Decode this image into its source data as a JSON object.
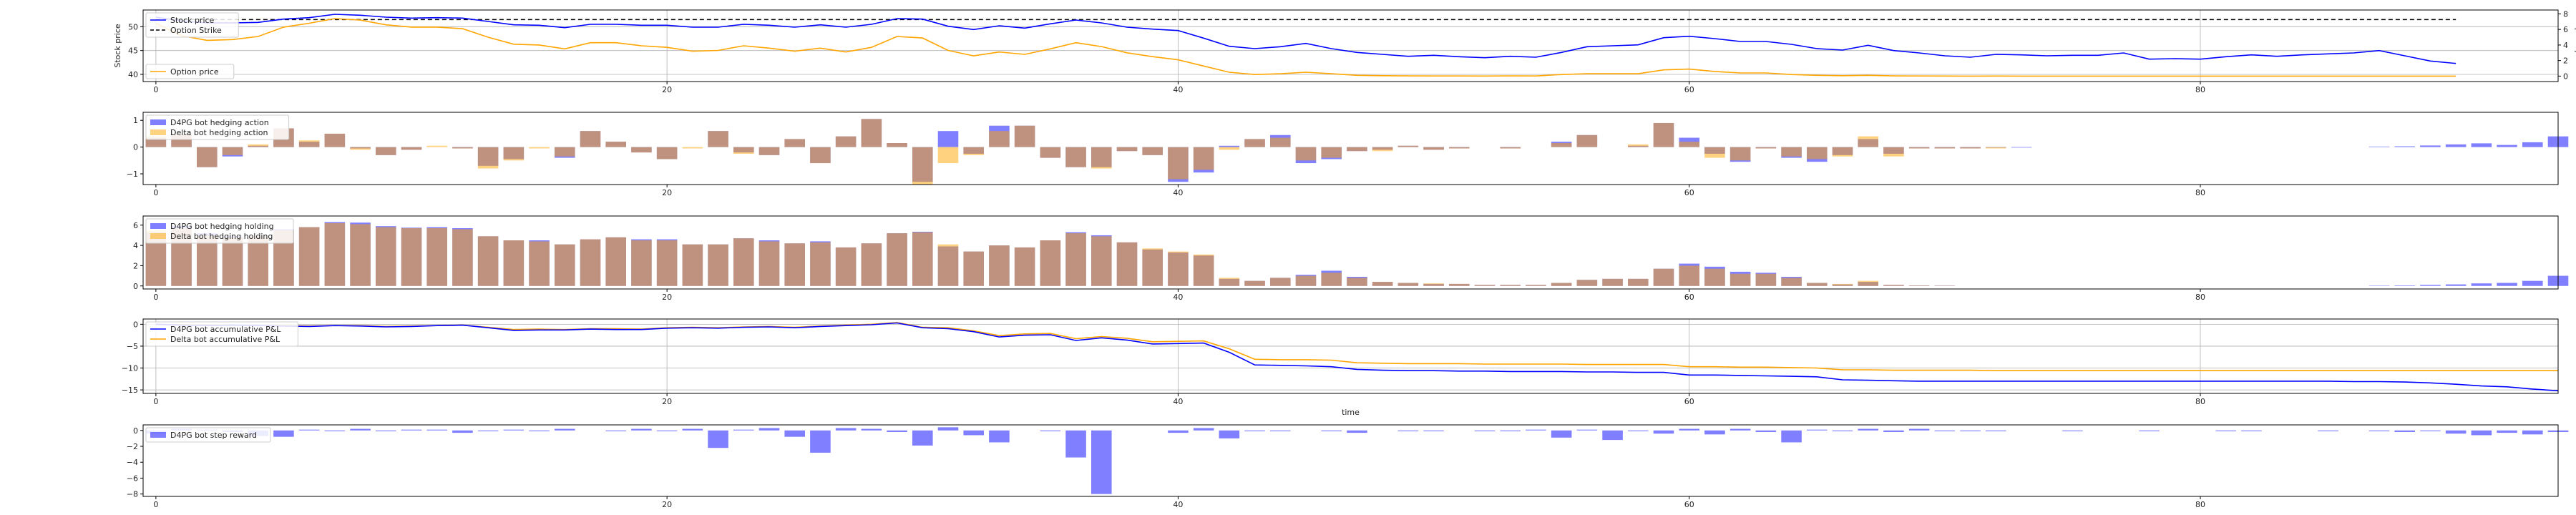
{
  "colors": {
    "d4pg": "#0000ff",
    "delta": "#ffa500",
    "overlap": "#a0522d",
    "strike": "#000000",
    "grid": "#b0b0b0",
    "axis": "#000000"
  },
  "chart_data": [
    {
      "id": "price",
      "type": "line",
      "ylabel": "Stock price",
      "y2label": "Option price",
      "ylim": [
        38.5,
        53.5
      ],
      "yticks": [
        40,
        45,
        50
      ],
      "y2lim": [
        -0.7,
        8.5
      ],
      "y2ticks": [
        0,
        2,
        4,
        6,
        8
      ],
      "xlim": [
        -0.5,
        94
      ],
      "xticks": [
        0,
        20,
        40,
        60,
        80
      ],
      "grid": true,
      "legend": [
        {
          "label": "Stock price",
          "style": "line",
          "color": "#0000ff"
        },
        {
          "label": "Option Strike",
          "style": "dashed",
          "color": "#000000"
        }
      ],
      "legend2": [
        {
          "label": "Option price",
          "style": "line",
          "color": "#ffa500"
        }
      ],
      "strike": 51.5,
      "stock_price": [
        52.0,
        51.2,
        50.8,
        50.8,
        50.9,
        51.6,
        51.9,
        52.6,
        52.4,
        52.0,
        51.8,
        51.9,
        51.8,
        51.1,
        50.4,
        50.3,
        49.8,
        50.5,
        50.5,
        50.3,
        50.3,
        49.9,
        49.9,
        50.5,
        50.3,
        49.9,
        50.4,
        49.9,
        50.5,
        51.7,
        51.6,
        50.1,
        49.4,
        50.2,
        49.7,
        50.6,
        51.4,
        50.8,
        49.9,
        49.5,
        49.2,
        47.6,
        45.9,
        45.4,
        45.8,
        46.5,
        45.4,
        44.6,
        44.2,
        43.8,
        44.0,
        43.7,
        43.5,
        43.8,
        43.6,
        44.6,
        45.8,
        46.0,
        46.2,
        47.7,
        48.0,
        47.5,
        46.9,
        46.9,
        46.3,
        45.4,
        45.1,
        46.1,
        45.0,
        44.5,
        43.9,
        43.6,
        44.2,
        44.1,
        43.9,
        44.0,
        44.0,
        44.5,
        43.2,
        43.3,
        43.2,
        43.7,
        44.1,
        43.8,
        44.1,
        44.3,
        44.5,
        45.0,
        43.9,
        42.8,
        42.3
      ],
      "option_price": [
        6.8,
        5.2,
        4.6,
        4.7,
        5.1,
        6.3,
        6.8,
        7.4,
        7.2,
        6.6,
        6.3,
        6.3,
        6.1,
        5.0,
        4.1,
        4.0,
        3.5,
        4.3,
        4.3,
        3.9,
        3.7,
        3.2,
        3.3,
        3.9,
        3.6,
        3.2,
        3.6,
        3.1,
        3.7,
        5.1,
        4.9,
        3.3,
        2.6,
        3.1,
        2.8,
        3.5,
        4.3,
        3.8,
        3.0,
        2.5,
        2.1,
        1.3,
        0.5,
        0.2,
        0.3,
        0.5,
        0.3,
        0.1,
        0.05,
        0.03,
        0.02,
        0.02,
        0.01,
        0.03,
        0.02,
        0.2,
        0.3,
        0.3,
        0.3,
        0.8,
        0.9,
        0.6,
        0.4,
        0.4,
        0.2,
        0.1,
        0.05,
        0.1,
        0.03,
        0.02,
        0.01,
        0.0,
        0.01,
        0.0,
        0.0,
        0.0,
        0.0,
        0.0,
        0.0,
        0.0,
        0.0,
        0.0,
        0.0,
        0.0,
        0.0,
        0.0,
        0.0,
        0.0,
        0.0,
        0.0,
        0.0
      ]
    },
    {
      "id": "action",
      "type": "bar",
      "ylim": [
        -1.4,
        1.3
      ],
      "yticks": [
        -1,
        0,
        1
      ],
      "xlim": [
        -0.5,
        94
      ],
      "xticks": [
        0,
        20,
        40,
        60,
        80
      ],
      "grid": false,
      "legend": [
        {
          "label": "D4PG bot hedging action",
          "style": "bar",
          "color": "#0000ff"
        },
        {
          "label": "Delta bot hedging action",
          "style": "bar",
          "color": "#ffa500"
        }
      ],
      "d4pg": [
        0.35,
        0.5,
        -0.75,
        -0.35,
        0.05,
        0.7,
        0.2,
        0.5,
        -0.05,
        -0.3,
        -0.1,
        0.0,
        -0.05,
        -0.7,
        -0.45,
        0.0,
        -0.4,
        0.6,
        0.2,
        -0.2,
        -0.45,
        0.0,
        0.6,
        -0.2,
        -0.3,
        0.3,
        -0.6,
        0.4,
        1.05,
        0.15,
        -1.3,
        0.6,
        -0.25,
        0.8,
        0.8,
        -0.4,
        -0.75,
        -0.75,
        -0.15,
        -0.3,
        -1.3,
        -0.95,
        0.05,
        0.3,
        0.45,
        -0.6,
        -0.45,
        -0.15,
        -0.1,
        0.05,
        -0.1,
        -0.05,
        0.0,
        -0.05,
        0.0,
        0.2,
        0.45,
        0.0,
        0.05,
        0.9,
        0.35,
        -0.25,
        -0.55,
        -0.05,
        -0.4,
        -0.55,
        -0.3,
        0.3,
        -0.25,
        -0.05,
        -0.05,
        -0.05,
        -0.02,
        -0.02,
        0.0,
        0.0,
        0.0,
        0.0,
        0.0,
        0.0,
        0.0,
        0.0,
        0.0,
        0.0,
        0.0,
        0.0,
        0.0,
        0.02,
        0.03,
        0.06,
        0.1,
        0.14,
        0.08,
        0.18,
        0.4
      ],
      "delta": [
        0.4,
        0.5,
        -0.75,
        -0.3,
        0.1,
        0.7,
        0.25,
        0.5,
        -0.1,
        -0.3,
        -0.1,
        0.05,
        -0.05,
        -0.8,
        -0.5,
        -0.05,
        -0.35,
        0.6,
        0.2,
        -0.2,
        -0.45,
        -0.05,
        0.6,
        -0.25,
        -0.3,
        0.3,
        -0.6,
        0.4,
        1.05,
        0.15,
        -1.4,
        -0.6,
        -0.3,
        0.6,
        0.8,
        -0.4,
        -0.75,
        -0.8,
        -0.15,
        -0.3,
        -1.2,
        -0.85,
        -0.1,
        0.3,
        0.35,
        -0.5,
        -0.4,
        -0.15,
        -0.15,
        0.05,
        -0.1,
        -0.05,
        0.0,
        -0.05,
        0.0,
        0.15,
        0.45,
        0.0,
        0.1,
        0.9,
        0.2,
        -0.4,
        -0.5,
        -0.05,
        -0.35,
        -0.45,
        -0.35,
        0.4,
        -0.35,
        -0.05,
        -0.05,
        -0.05,
        -0.05,
        0.0,
        0.0,
        0.0,
        0.0,
        0.0,
        0.0,
        0.0,
        0.0,
        0.0,
        0.0,
        0.0,
        0.0,
        0.0,
        0.0,
        0.0,
        0.0,
        0.0,
        0.0,
        0.0,
        0.0,
        0.0,
        0.0
      ]
    },
    {
      "id": "holding",
      "type": "bar",
      "ylim": [
        -0.3,
        6.9
      ],
      "yticks": [
        0,
        2,
        4,
        6
      ],
      "xlim": [
        -0.5,
        94
      ],
      "xticks": [
        0,
        20,
        40,
        60,
        80
      ],
      "grid": false,
      "legend": [
        {
          "label": "D4PG bot hedging holding",
          "style": "bar",
          "color": "#0000ff"
        },
        {
          "label": "Delta bot hedging holding",
          "style": "bar",
          "color": "#ffa500"
        }
      ],
      "d4pg": [
        5.3,
        5.9,
        5.2,
        4.9,
        4.9,
        5.6,
        5.8,
        6.3,
        6.25,
        5.9,
        5.75,
        5.8,
        5.7,
        4.9,
        4.5,
        4.5,
        4.1,
        4.6,
        4.8,
        4.6,
        4.6,
        4.1,
        4.1,
        4.7,
        4.5,
        4.2,
        4.4,
        3.8,
        4.2,
        5.2,
        5.35,
        3.9,
        3.4,
        4.0,
        3.8,
        4.5,
        5.3,
        5.0,
        4.3,
        3.6,
        3.3,
        3.0,
        0.7,
        0.5,
        0.8,
        1.1,
        1.5,
        0.9,
        0.4,
        0.3,
        0.2,
        0.2,
        0.1,
        0.1,
        0.1,
        0.3,
        0.6,
        0.7,
        0.7,
        1.7,
        2.2,
        1.9,
        1.4,
        1.3,
        0.9,
        0.3,
        0.15,
        0.4,
        0.1,
        0.05,
        0.02,
        0.0,
        0.0,
        0.0,
        0.0,
        0.0,
        0.0,
        0.0,
        0.0,
        0.0,
        0.0,
        0.0,
        0.0,
        0.0,
        0.0,
        0.0,
        0.0,
        0.02,
        0.05,
        0.1,
        0.15,
        0.25,
        0.3,
        0.5,
        1.0
      ],
      "delta": [
        5.5,
        5.7,
        5.0,
        4.8,
        4.9,
        5.5,
        5.8,
        6.2,
        6.1,
        5.8,
        5.7,
        5.7,
        5.6,
        4.9,
        4.5,
        4.4,
        4.1,
        4.6,
        4.8,
        4.5,
        4.5,
        4.1,
        4.1,
        4.7,
        4.4,
        4.2,
        4.3,
        3.8,
        4.2,
        5.2,
        5.3,
        4.1,
        3.4,
        4.0,
        3.8,
        4.5,
        5.2,
        4.9,
        4.3,
        3.7,
        3.4,
        3.1,
        0.8,
        0.5,
        0.8,
        1.0,
        1.3,
        0.8,
        0.4,
        0.3,
        0.25,
        0.2,
        0.1,
        0.1,
        0.1,
        0.3,
        0.6,
        0.7,
        0.7,
        1.7,
        2.0,
        1.7,
        1.2,
        1.2,
        0.8,
        0.3,
        0.2,
        0.5,
        0.1,
        0.05,
        0.03,
        0.0,
        0.0,
        0.0,
        0.0,
        0.0,
        0.0,
        0.0,
        0.0,
        0.0,
        0.0,
        0.0,
        0.0,
        0.0,
        0.0,
        0.0,
        0.0,
        0.0,
        0.0,
        0.0,
        0.0,
        0.0,
        0.0,
        0.0,
        0.0
      ]
    },
    {
      "id": "pnl",
      "type": "line",
      "xlabel": "time",
      "ylim": [
        -15.8,
        1.2
      ],
      "yticks": [
        -15,
        -10,
        -5,
        0
      ],
      "xlim": [
        -0.5,
        94
      ],
      "xticks": [
        0,
        20,
        40,
        60,
        80
      ],
      "grid": true,
      "legend": [
        {
          "label": "D4PG bot accumulative P&L",
          "style": "line",
          "color": "#0000ff"
        },
        {
          "label": "Delta bot accumulative P&L",
          "style": "line",
          "color": "#ffa500"
        }
      ],
      "d4pg": [
        0,
        -0.2,
        -0.3,
        -0.2,
        -0.3,
        -0.4,
        -0.5,
        -0.3,
        -0.4,
        -0.6,
        -0.5,
        -0.3,
        -0.2,
        -0.8,
        -1.4,
        -1.3,
        -1.3,
        -1.1,
        -1.2,
        -1.2,
        -0.9,
        -0.8,
        -0.9,
        -0.7,
        -0.6,
        -0.8,
        -0.5,
        -0.3,
        -0.1,
        0.3,
        -0.8,
        -1.0,
        -1.7,
        -2.9,
        -2.5,
        -2.4,
        -3.7,
        -3.1,
        -3.6,
        -4.5,
        -4.4,
        -4.3,
        -6.4,
        -9.3,
        -9.4,
        -9.5,
        -9.7,
        -10.3,
        -10.5,
        -10.6,
        -10.6,
        -10.7,
        -10.7,
        -10.8,
        -10.8,
        -10.8,
        -10.9,
        -10.9,
        -11.0,
        -11.0,
        -11.6,
        -11.6,
        -11.7,
        -11.8,
        -11.9,
        -12.0,
        -12.7,
        -12.8,
        -12.9,
        -13.0,
        -13.0,
        -13.0,
        -13.0,
        -13.0,
        -13.0,
        -13.0,
        -13.0,
        -13.0,
        -13.0,
        -13.0,
        -13.0,
        -13.0,
        -13.0,
        -13.0,
        -13.0,
        -13.0,
        -13.1,
        -13.1,
        -13.2,
        -13.4,
        -13.7,
        -14.1,
        -14.3,
        -14.8,
        -15.2
      ],
      "delta": [
        0,
        -0.1,
        -0.2,
        -0.2,
        -0.3,
        -0.3,
        -0.4,
        -0.3,
        -0.3,
        -0.5,
        -0.4,
        -0.3,
        -0.2,
        -0.7,
        -1.2,
        -1.1,
        -1.2,
        -1.0,
        -1.0,
        -1.1,
        -0.8,
        -0.7,
        -0.8,
        -0.6,
        -0.5,
        -0.7,
        -0.4,
        -0.2,
        0.0,
        0.4,
        -0.7,
        -0.8,
        -1.5,
        -2.6,
        -2.2,
        -2.1,
        -3.3,
        -2.8,
        -3.2,
        -4.0,
        -3.9,
        -3.8,
        -5.6,
        -8.0,
        -8.1,
        -8.1,
        -8.2,
        -8.8,
        -8.9,
        -9.0,
        -9.0,
        -9.0,
        -9.1,
        -9.1,
        -9.1,
        -9.1,
        -9.2,
        -9.2,
        -9.2,
        -9.2,
        -9.7,
        -9.7,
        -9.8,
        -9.8,
        -9.9,
        -10.0,
        -10.4,
        -10.4,
        -10.5,
        -10.5,
        -10.5,
        -10.5,
        -10.6,
        -10.6,
        -10.6,
        -10.6,
        -10.6,
        -10.6,
        -10.6,
        -10.6,
        -10.6,
        -10.6,
        -10.6,
        -10.6,
        -10.6,
        -10.6,
        -10.6,
        -10.6,
        -10.6,
        -10.6,
        -10.6,
        -10.6,
        -10.6,
        -10.6,
        -10.6
      ]
    },
    {
      "id": "reward",
      "type": "bar",
      "ylim": [
        -8.3,
        0.7
      ],
      "yticks": [
        -8,
        -6,
        -4,
        -2,
        0
      ],
      "xlim": [
        -0.5,
        94
      ],
      "xticks": [
        0,
        20,
        40,
        60,
        80
      ],
      "grid": false,
      "legend": [
        {
          "label": "D4PG bot step reward",
          "style": "bar",
          "color": "#0000ff"
        }
      ],
      "d4pg": [
        -0.4,
        0.2,
        0.1,
        -0.2,
        -0.7,
        -0.8,
        0.1,
        -0.1,
        0.2,
        -0.1,
        0.1,
        0.1,
        -0.3,
        -0.1,
        0.1,
        -0.1,
        0.2,
        0.0,
        -0.1,
        0.2,
        -0.1,
        0.2,
        -2.2,
        0.1,
        0.3,
        -0.8,
        -2.8,
        0.3,
        0.2,
        -0.2,
        -1.9,
        0.4,
        -0.6,
        -1.5,
        0.0,
        -0.1,
        -3.4,
        -8.0,
        0.0,
        0.0,
        -0.3,
        0.3,
        -1.0,
        -0.1,
        -0.1,
        0.0,
        -0.1,
        -0.3,
        0.0,
        -0.1,
        -0.1,
        0.0,
        -0.1,
        -0.1,
        0.1,
        -0.9,
        0.1,
        -1.2,
        -0.1,
        -0.4,
        0.2,
        -0.5,
        0.2,
        -0.2,
        -1.5,
        0.1,
        -0.1,
        0.2,
        -0.2,
        0.2,
        -0.1,
        -0.1,
        -0.1,
        0.0,
        0.0,
        -0.1,
        0.0,
        0.0,
        -0.1,
        0.0,
        0.0,
        -0.1,
        -0.1,
        0.0,
        0.0,
        -0.1,
        0.0,
        -0.1,
        -0.2,
        -0.1,
        -0.4,
        -0.6,
        -0.3,
        -0.5,
        -0.2
      ]
    }
  ]
}
